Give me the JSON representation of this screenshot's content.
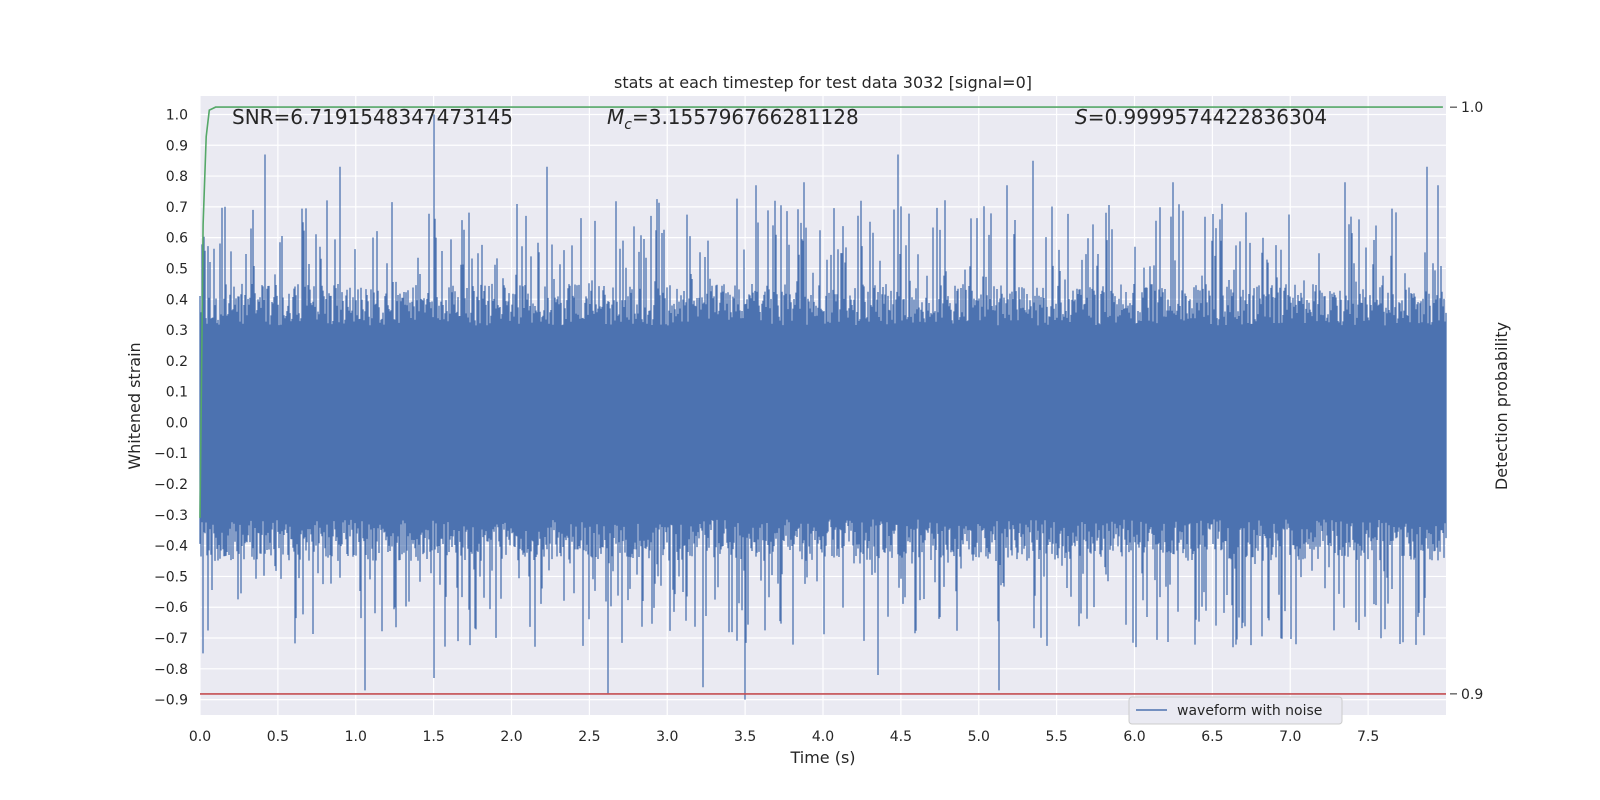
{
  "chart_data": {
    "type": "line",
    "title": "stats at each timestep for test data 3032 [signal=0]",
    "xlabel": "Time (s)",
    "ylabel": "Whitened strain",
    "y2label": "Detection probability",
    "xlim": [
      0.0,
      8.0
    ],
    "ylim": [
      -0.95,
      1.06
    ],
    "y2lim": [
      0.8964,
      1.0019
    ],
    "x_ticks": [
      "0.0",
      "0.5",
      "1.0",
      "1.5",
      "2.0",
      "2.5",
      "3.0",
      "3.5",
      "4.0",
      "4.5",
      "5.0",
      "5.5",
      "6.0",
      "6.5",
      "7.0",
      "7.5"
    ],
    "y_ticks": [
      "1.0",
      "0.9",
      "0.8",
      "0.7",
      "0.6",
      "0.5",
      "0.4",
      "0.3",
      "0.2",
      "0.1",
      "0.0",
      "−0.1",
      "−0.2",
      "−0.3",
      "−0.4",
      "−0.5",
      "−0.6",
      "−0.7",
      "−0.8",
      "−0.9"
    ],
    "y2_ticks": [
      "1.0",
      "0.9"
    ],
    "annotations": {
      "snr": "SNR=6.7191548347473145",
      "mc_symbol": "M",
      "mc_sub": "c",
      "mc_value": "=3.155796766281128",
      "s_symbol": "S",
      "s_value": "=0.9999574422836304"
    },
    "grid": true,
    "legend_position": "lower-right",
    "series": [
      {
        "name": "waveform with noise",
        "axis": "left",
        "color": "#4c72b0",
        "kind": "noise",
        "x_range": [
          0.0,
          8.0
        ],
        "typical_range": [
          -0.45,
          0.45
        ],
        "extremes": [
          [
            0.02,
            -0.75
          ],
          [
            0.42,
            0.87
          ],
          [
            0.9,
            0.83
          ],
          [
            1.06,
            -0.87
          ],
          [
            1.5,
            1.0
          ],
          [
            1.5,
            -0.83
          ],
          [
            2.23,
            0.83
          ],
          [
            2.62,
            -0.88
          ],
          [
            3.23,
            -0.86
          ],
          [
            3.5,
            -0.9
          ],
          [
            3.57,
            0.77
          ],
          [
            3.88,
            0.78
          ],
          [
            4.35,
            -0.82
          ],
          [
            4.48,
            0.87
          ],
          [
            5.13,
            -0.87
          ],
          [
            5.18,
            0.77
          ],
          [
            5.35,
            0.85
          ],
          [
            6.25,
            0.78
          ],
          [
            7.35,
            0.78
          ],
          [
            7.88,
            0.83
          ],
          [
            7.95,
            0.77
          ]
        ]
      },
      {
        "name": "detection probability",
        "axis": "right",
        "color": "#55a868",
        "x": [
          0.0,
          0.01,
          0.02,
          0.04,
          0.06,
          0.1,
          0.2,
          1.0,
          2.0,
          3.0,
          4.0,
          5.0,
          6.0,
          7.0,
          7.98
        ],
        "y": [
          0.93,
          0.955,
          0.98,
          0.995,
          0.9995,
          1.0,
          1.0,
          1.0,
          1.0,
          1.0,
          1.0,
          1.0,
          1.0,
          1.0,
          1.0
        ]
      },
      {
        "name": "threshold",
        "axis": "right",
        "color": "#c44e52",
        "x": [
          0.0,
          8.0
        ],
        "y": [
          0.9,
          0.9
        ]
      }
    ],
    "colors": {
      "plot_bg": "#eaeaf2",
      "grid": "#ffffff",
      "text": "#262626"
    }
  }
}
